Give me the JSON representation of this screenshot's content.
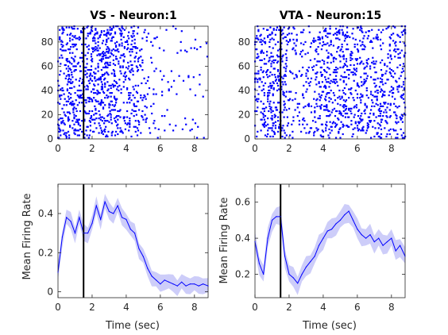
{
  "chart_data": [
    {
      "type": "scatter",
      "panel": "raster",
      "title": "VS - Neuron:1",
      "xlabel": "",
      "ylabel": "",
      "xlim": [
        0,
        8.8
      ],
      "ylim": [
        0,
        93
      ],
      "xticks": [
        0,
        2,
        4,
        6,
        8
      ],
      "yticks": [
        0,
        20,
        40,
        60,
        80
      ],
      "event_time": 1.5,
      "trials": 93,
      "density_profile": [
        [
          0,
          0.45
        ],
        [
          0.5,
          0.7
        ],
        [
          1.0,
          0.55
        ],
        [
          1.5,
          0.4
        ],
        [
          2.0,
          0.55
        ],
        [
          2.5,
          0.7
        ],
        [
          3.0,
          0.65
        ],
        [
          3.5,
          0.6
        ],
        [
          4.0,
          0.55
        ],
        [
          4.5,
          0.45
        ],
        [
          5.0,
          0.3
        ],
        [
          5.5,
          0.15
        ],
        [
          6.0,
          0.08
        ],
        [
          7.0,
          0.06
        ],
        [
          8.0,
          0.05
        ],
        [
          8.8,
          0.05
        ]
      ],
      "color": "#0000ff",
      "grid": false
    },
    {
      "type": "scatter",
      "panel": "raster",
      "title": "VTA - Neuron:15",
      "xlabel": "",
      "ylabel": "",
      "xlim": [
        0,
        8.8
      ],
      "ylim": [
        0,
        93
      ],
      "xticks": [
        0,
        2,
        4,
        6,
        8
      ],
      "yticks": [
        0,
        20,
        40,
        60,
        80
      ],
      "event_time": 1.5,
      "trials": 93,
      "density_profile": [
        [
          0,
          0.5
        ],
        [
          0.5,
          0.5
        ],
        [
          1.0,
          0.55
        ],
        [
          1.5,
          0.6
        ],
        [
          2.0,
          0.25
        ],
        [
          2.5,
          0.25
        ],
        [
          3.0,
          0.3
        ],
        [
          3.5,
          0.4
        ],
        [
          4.0,
          0.5
        ],
        [
          4.5,
          0.55
        ],
        [
          5.0,
          0.6
        ],
        [
          5.5,
          0.6
        ],
        [
          6.0,
          0.5
        ],
        [
          7.0,
          0.45
        ],
        [
          8.0,
          0.45
        ],
        [
          8.8,
          0.45
        ]
      ],
      "color": "#0000ff",
      "grid": false
    },
    {
      "type": "line",
      "panel": "rate",
      "title": "",
      "xlabel": "Time (sec)",
      "ylabel": "Mean Firing Rate",
      "xlim": [
        0,
        8.8
      ],
      "ylim": [
        -0.03,
        0.55
      ],
      "xticks": [
        0,
        2,
        4,
        6,
        8
      ],
      "yticks": [
        0,
        0.2,
        0.4
      ],
      "event_time": 1.5,
      "x": [
        0,
        0.25,
        0.5,
        0.75,
        1.0,
        1.25,
        1.5,
        1.75,
        2.0,
        2.25,
        2.5,
        2.75,
        3.0,
        3.25,
        3.5,
        3.75,
        4.0,
        4.25,
        4.5,
        4.75,
        5.0,
        5.25,
        5.5,
        5.75,
        6.0,
        6.25,
        6.5,
        6.75,
        7.0,
        7.25,
        7.5,
        7.75,
        8.0,
        8.25,
        8.5,
        8.8
      ],
      "y": [
        0.1,
        0.28,
        0.38,
        0.36,
        0.3,
        0.38,
        0.3,
        0.3,
        0.35,
        0.44,
        0.37,
        0.46,
        0.41,
        0.4,
        0.44,
        0.38,
        0.37,
        0.32,
        0.3,
        0.22,
        0.18,
        0.12,
        0.08,
        0.06,
        0.04,
        0.06,
        0.05,
        0.04,
        0.03,
        0.05,
        0.03,
        0.04,
        0.04,
        0.03,
        0.04,
        0.03
      ],
      "band": 0.04,
      "color": "#0000ff",
      "band_color": "#c8c8f8",
      "grid": false
    },
    {
      "type": "line",
      "panel": "rate",
      "title": "",
      "xlabel": "Time (sec)",
      "ylabel": "Mean Firing Rate",
      "xlim": [
        0,
        8.8
      ],
      "ylim": [
        0.07,
        0.7
      ],
      "xticks": [
        0,
        2,
        4,
        6,
        8
      ],
      "yticks": [
        0.2,
        0.4,
        0.6
      ],
      "event_time": 1.5,
      "x": [
        0,
        0.25,
        0.5,
        0.75,
        1.0,
        1.25,
        1.5,
        1.75,
        2.0,
        2.25,
        2.5,
        2.75,
        3.0,
        3.25,
        3.5,
        3.75,
        4.0,
        4.25,
        4.5,
        4.75,
        5.0,
        5.25,
        5.5,
        5.75,
        6.0,
        6.25,
        6.5,
        6.75,
        7.0,
        7.25,
        7.5,
        7.75,
        8.0,
        8.25,
        8.5,
        8.8
      ],
      "y": [
        0.38,
        0.26,
        0.2,
        0.4,
        0.5,
        0.52,
        0.52,
        0.3,
        0.2,
        0.18,
        0.15,
        0.2,
        0.24,
        0.27,
        0.3,
        0.36,
        0.4,
        0.44,
        0.45,
        0.48,
        0.5,
        0.53,
        0.55,
        0.5,
        0.45,
        0.42,
        0.4,
        0.42,
        0.38,
        0.4,
        0.36,
        0.38,
        0.4,
        0.33,
        0.36,
        0.3
      ],
      "band": 0.05,
      "color": "#0000ff",
      "band_color": "#c8c8f8",
      "grid": false
    }
  ]
}
